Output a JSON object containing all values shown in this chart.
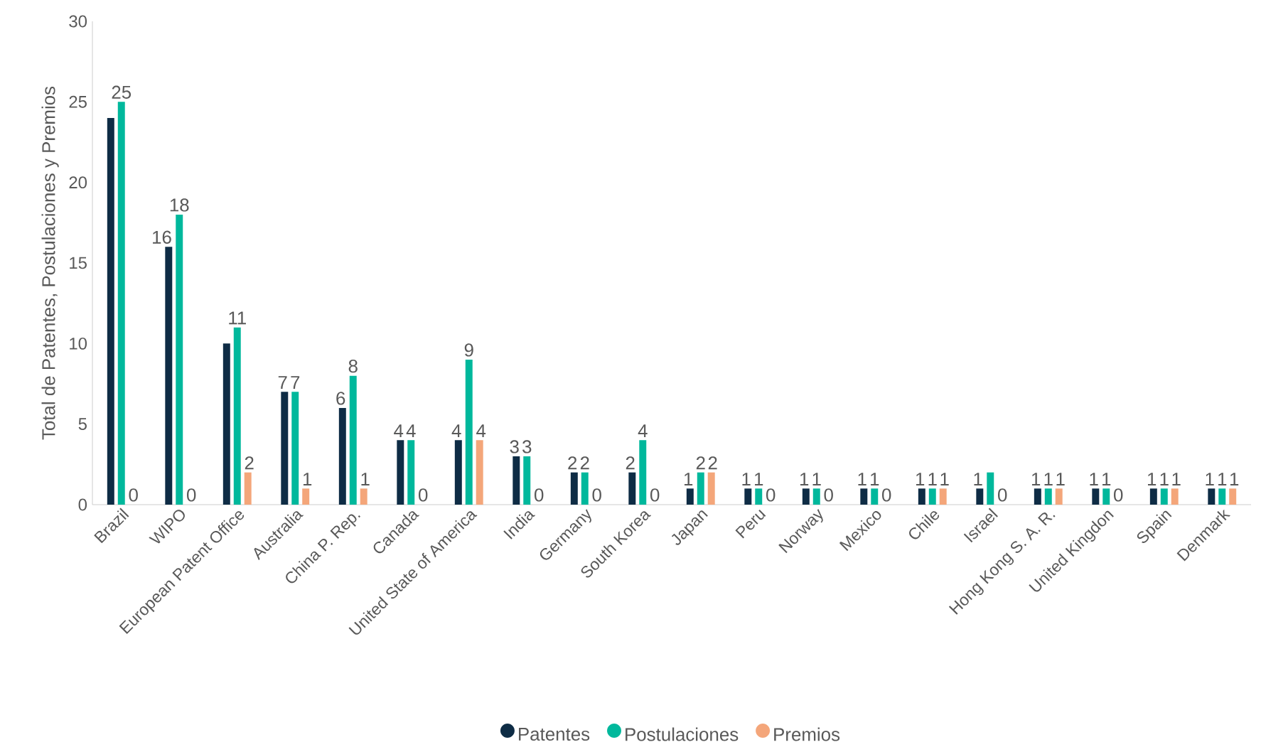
{
  "chart_data": {
    "type": "bar",
    "ylabel": "Total de Patentes, Postulaciones y Premios",
    "categories": [
      "Brazil",
      "WIPO",
      "European Patent Office",
      "Australia",
      "China P. Rep.",
      "Canada",
      "United State of America",
      "India",
      "Germany",
      "South Korea",
      "Japan",
      "Peru",
      "Norway",
      "Mexico",
      "Chile",
      "Israel",
      "Hong Kong S. A. R.",
      "United Kingdon",
      "Spain",
      "Denmark"
    ],
    "series": [
      {
        "name": "Patentes",
        "color": "#0e2c45",
        "values": [
          24,
          16,
          10,
          7,
          6,
          4,
          4,
          3,
          2,
          2,
          1,
          1,
          1,
          1,
          1,
          1,
          1,
          1,
          1,
          1
        ],
        "value_labels": [
          null,
          "16",
          null,
          "7",
          "6",
          "4",
          "4",
          "3",
          "2",
          "2",
          "1",
          "1",
          "1",
          "1",
          "1",
          "1",
          "1",
          "1",
          "1",
          "1"
        ]
      },
      {
        "name": "Postulaciones",
        "color": "#00b89c",
        "values": [
          25,
          18,
          11,
          7,
          8,
          4,
          9,
          3,
          2,
          4,
          2,
          1,
          1,
          1,
          1,
          2,
          1,
          1,
          1,
          1
        ],
        "value_labels": [
          "25",
          "18",
          "11",
          "7",
          "8",
          "4",
          "9",
          "3",
          "2",
          "4",
          "2",
          "1",
          "1",
          "1",
          "1",
          null,
          "1",
          "1",
          "1",
          "1"
        ]
      },
      {
        "name": "Premios",
        "color": "#f4a67a",
        "values": [
          0,
          0,
          2,
          1,
          1,
          0,
          4,
          0,
          0,
          0,
          2,
          0,
          0,
          0,
          1,
          0,
          1,
          0,
          1,
          1
        ],
        "value_labels": [
          "0",
          "0",
          "2",
          "1",
          "1",
          "0",
          "4",
          "0",
          "0",
          "0",
          "2",
          "0",
          "0",
          "0",
          "1",
          "0",
          "1",
          "0",
          "1",
          "1"
        ]
      }
    ],
    "ylim": [
      0,
      30
    ],
    "yticks": [
      0,
      5,
      10,
      15,
      20,
      25,
      30
    ],
    "grid": false,
    "legend": "bottom"
  }
}
